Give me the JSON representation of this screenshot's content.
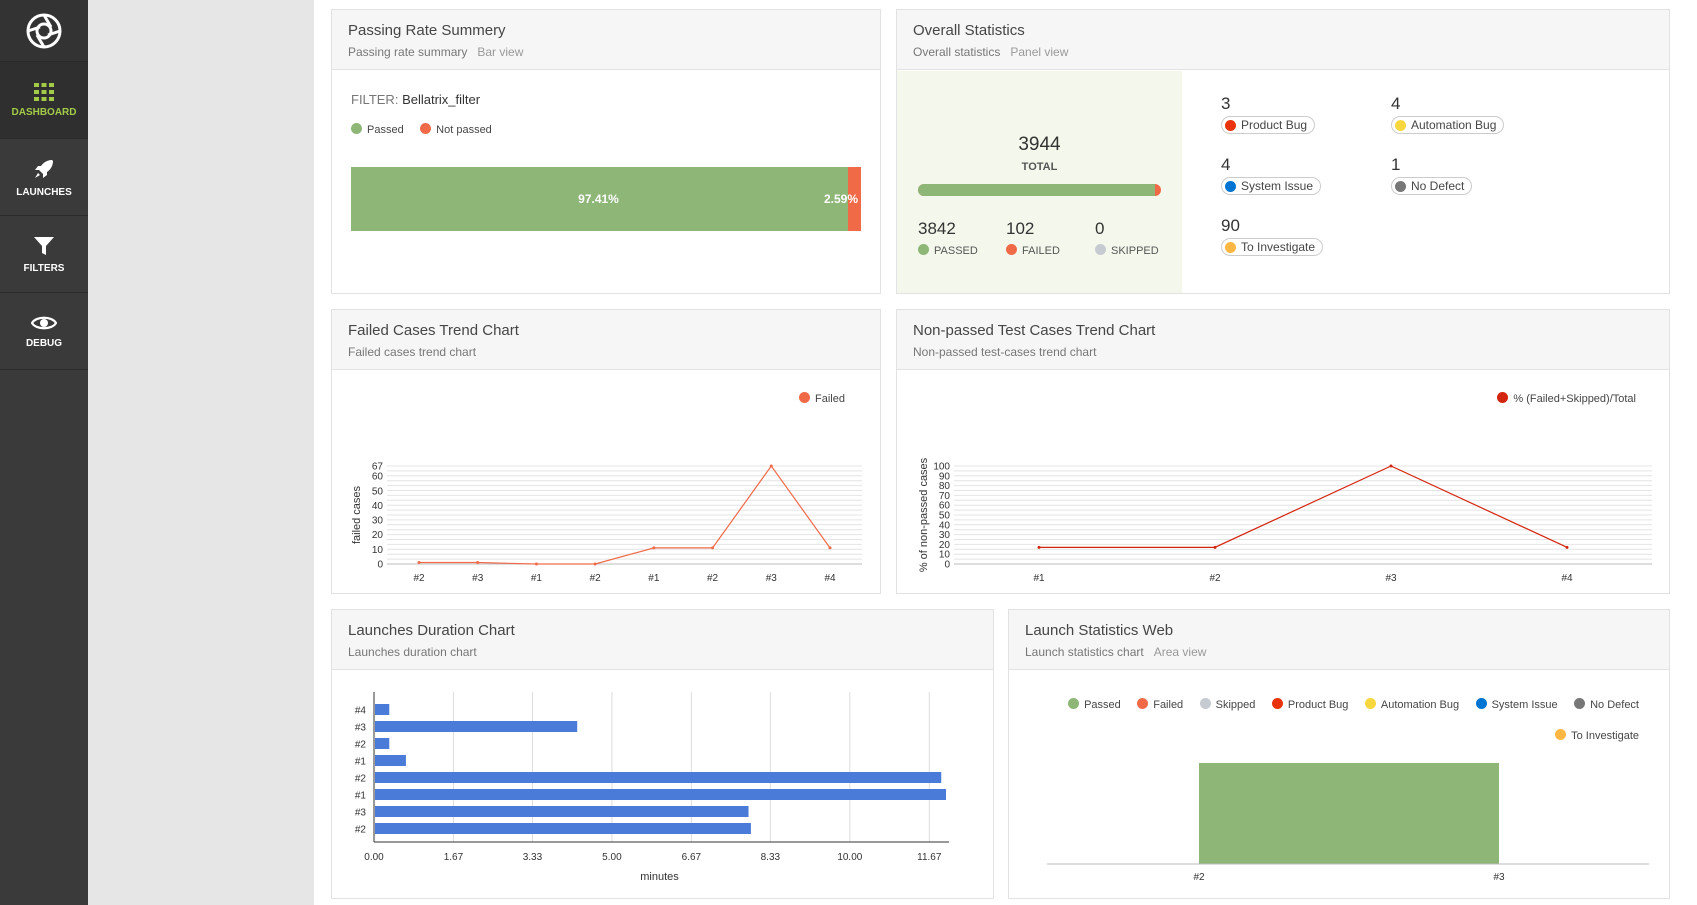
{
  "sidebar": {
    "items": [
      {
        "label": "DASHBOARD",
        "icon": "grid-icon",
        "active": true
      },
      {
        "label": "LAUNCHES",
        "icon": "rocket-icon",
        "active": false
      },
      {
        "label": "FILTERS",
        "icon": "filter-icon",
        "active": false
      },
      {
        "label": "DEBUG",
        "icon": "eye-icon",
        "active": false
      }
    ]
  },
  "colors": {
    "passed": "#8db677",
    "failed": "#f06a47",
    "skipped": "#c6cbd1",
    "product_bug": "#e8330c",
    "automation_bug": "#f7d63e",
    "system_issue": "#0274d1",
    "no_defect": "#777777",
    "to_investigate": "#ffb743",
    "accent": "#a2cb48",
    "bar_blue": "#4a7bd8",
    "trend_red": "#d4250e"
  },
  "passing_rate": {
    "title": "Passing Rate Summery",
    "subtitle": "Passing rate summary",
    "view": "Bar view",
    "filter_label": "FILTER:",
    "filter_value": "Bellatrix_filter",
    "legend_passed": "Passed",
    "legend_not_passed": "Not passed",
    "passed_pct": 97.41,
    "passed_label": "97.41%",
    "failed_label": "2.59%"
  },
  "overall": {
    "title": "Overall Statistics",
    "subtitle": "Overall statistics",
    "view": "Panel view",
    "total": "3944",
    "total_label": "TOTAL",
    "passed": "3842",
    "passed_label": "PASSED",
    "failed": "102",
    "failed_label": "FAILED",
    "skipped": "0",
    "skipped_label": "SKIPPED",
    "passed_fraction": 0.974,
    "defects": [
      {
        "count": "3",
        "label": "Product Bug",
        "color": "#e8330c"
      },
      {
        "count": "4",
        "label": "Automation Bug",
        "color": "#f7d63e"
      },
      {
        "count": "4",
        "label": "System Issue",
        "color": "#0274d1"
      },
      {
        "count": "1",
        "label": "No Defect",
        "color": "#777777"
      },
      {
        "count": "90",
        "label": "To Investigate",
        "color": "#ffb743"
      }
    ]
  },
  "failed_trend": {
    "title": "Failed Cases Trend Chart",
    "subtitle": "Failed cases trend chart",
    "legend": "Failed",
    "ylabel": "failed cases"
  },
  "nonpassed_trend": {
    "title": "Non-passed Test Cases Trend Chart",
    "subtitle": "Non-passed test-cases trend chart",
    "legend": "% (Failed+Skipped)/Total",
    "ylabel": "% of non-passed cases"
  },
  "duration": {
    "title": "Launches Duration Chart",
    "subtitle": "Launches duration chart",
    "xlabel": "minutes"
  },
  "launch_stats": {
    "title": "Launch Statistics Web",
    "subtitle": "Launch statistics chart",
    "view": "Area view",
    "legend": [
      {
        "label": "Passed",
        "color": "#8db677"
      },
      {
        "label": "Failed",
        "color": "#f06a47"
      },
      {
        "label": "Skipped",
        "color": "#c6cbd1"
      },
      {
        "label": "Product Bug",
        "color": "#e8330c"
      },
      {
        "label": "Automation Bug",
        "color": "#f7d63e"
      },
      {
        "label": "System Issue",
        "color": "#0274d1"
      },
      {
        "label": "No Defect",
        "color": "#777777"
      },
      {
        "label": "To Investigate",
        "color": "#ffb743"
      }
    ]
  },
  "chart_data": [
    {
      "type": "line",
      "title": "Failed Cases Trend Chart",
      "ylabel": "failed cases",
      "x": [
        "#2",
        "#3",
        "#1",
        "#2",
        "#1",
        "#2",
        "#3",
        "#4"
      ],
      "series": [
        {
          "name": "Failed",
          "values": [
            1,
            1,
            0,
            0,
            11,
            11,
            67,
            11
          ]
        }
      ],
      "yticks": [
        0,
        10,
        20,
        30,
        40,
        50,
        60,
        67
      ],
      "ylim": [
        0,
        67
      ]
    },
    {
      "type": "line",
      "title": "Non-passed Test Cases Trend Chart",
      "ylabel": "% of non-passed cases",
      "x": [
        "#1",
        "#2",
        "#3",
        "#4"
      ],
      "series": [
        {
          "name": "% (Failed+Skipped)/Total",
          "values": [
            17,
            17,
            100,
            17
          ]
        }
      ],
      "yticks": [
        0,
        10,
        20,
        30,
        40,
        50,
        60,
        70,
        80,
        90,
        100
      ],
      "ylim": [
        0,
        100
      ]
    },
    {
      "type": "bar",
      "orientation": "horizontal",
      "title": "Launches Duration Chart",
      "xlabel": "minutes",
      "categories": [
        "#4",
        "#3",
        "#2",
        "#1",
        "#2",
        "#1",
        "#3",
        "#2"
      ],
      "values": [
        0.3,
        4.25,
        0.3,
        0.65,
        11.9,
        12.0,
        7.85,
        7.9
      ],
      "xticks": [
        "0.00",
        "1.67",
        "3.33",
        "5.00",
        "6.67",
        "8.33",
        "10.00",
        "11.67"
      ],
      "xlim": [
        0,
        12.0
      ]
    },
    {
      "type": "area",
      "title": "Launch Statistics Web",
      "x": [
        "#2",
        "#3"
      ],
      "series": [
        {
          "name": "Passed",
          "values": [
            1,
            1
          ]
        }
      ]
    }
  ]
}
